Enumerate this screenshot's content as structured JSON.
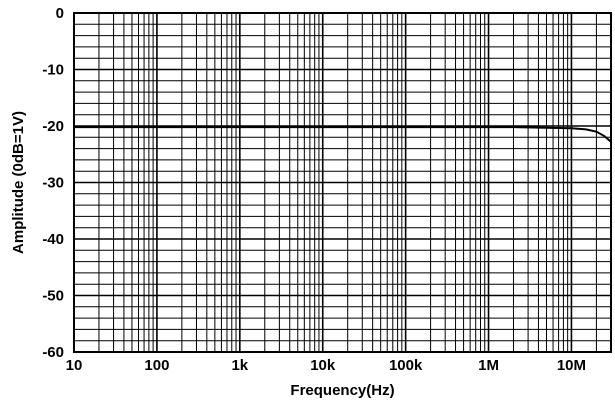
{
  "chart_data": {
    "type": "line",
    "title": "",
    "xlabel": "Frequency(Hz)",
    "ylabel": "Amplitude (0dB=1V)",
    "x_scale": "log",
    "xlim": [
      10,
      30000000
    ],
    "ylim": [
      -60,
      0
    ],
    "x_tick_values": [
      10,
      100,
      1000,
      10000,
      100000,
      1000000,
      10000000
    ],
    "x_tick_labels": [
      "10",
      "100",
      "1k",
      "10k",
      "100k",
      "1M",
      "10M"
    ],
    "y_tick_values": [
      0,
      -10,
      -20,
      -30,
      -40,
      -50,
      -60
    ],
    "y_tick_labels": [
      "0",
      "-10",
      "-20",
      "-30",
      "-40",
      "-50",
      "-60"
    ],
    "grid": true,
    "line_color": "#000000",
    "series": [
      {
        "x": [
          10,
          100,
          1000,
          10000,
          100000,
          1000000,
          2000000,
          5000000,
          10000000,
          15000000,
          20000000,
          25000000,
          30000000
        ],
        "y": [
          -20.2,
          -20.2,
          -20.2,
          -20.2,
          -20.2,
          -20.2,
          -20.2,
          -20.3,
          -20.4,
          -20.6,
          -21.0,
          -21.8,
          -22.8
        ]
      }
    ]
  }
}
